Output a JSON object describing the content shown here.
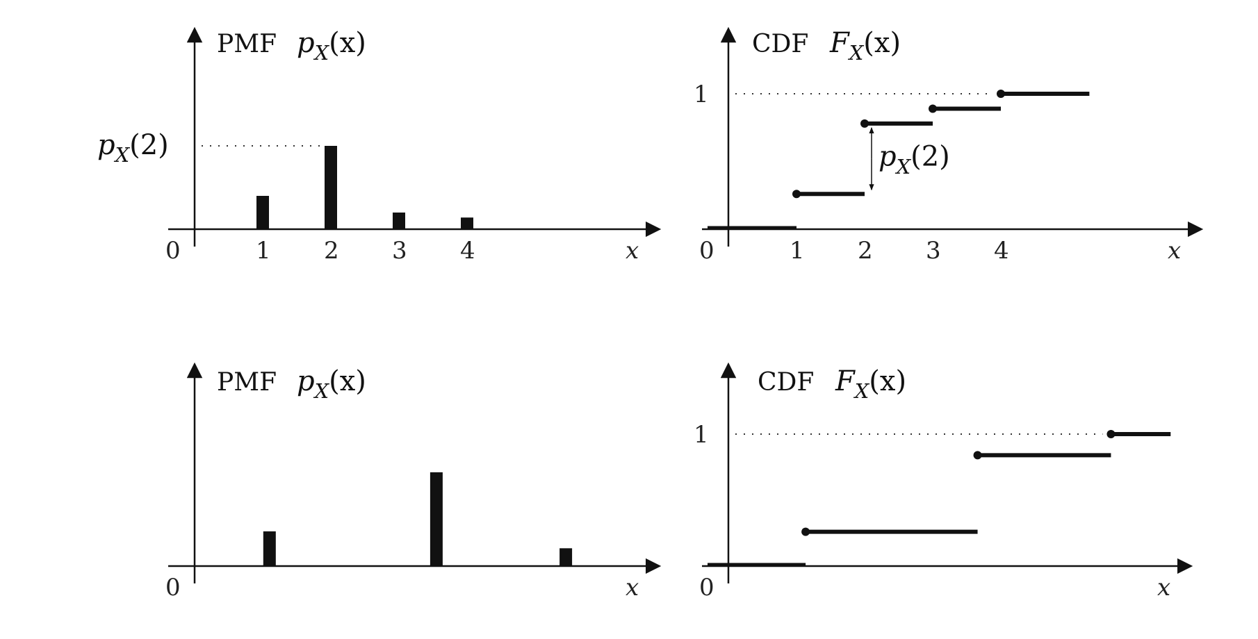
{
  "chart_data": [
    {
      "type": "bar",
      "title": "PMF",
      "title_math": "p",
      "title_sub": "X",
      "title_arg": "(x)",
      "xlabel": "x",
      "origin_label": "0",
      "x_ticks": [
        "1",
        "2",
        "3",
        "4"
      ],
      "x": [
        1,
        2,
        3,
        4
      ],
      "values": [
        0.4,
        1.0,
        0.2,
        0.14
      ],
      "y_ref_label": {
        "math": "p",
        "sub": "X",
        "arg": "(2)"
      }
    },
    {
      "type": "line",
      "title": "CDF",
      "title_math": "F",
      "title_sub": "X",
      "title_arg": "(x)",
      "xlabel": "x",
      "origin_label": "0",
      "y_tick": "1",
      "x_ticks": [
        "1",
        "2",
        "3",
        "4"
      ],
      "steps": [
        {
          "x_start": 0,
          "x_end": 1,
          "y": 0
        },
        {
          "x_start": 1,
          "x_end": 2,
          "y": 0.26
        },
        {
          "x_start": 2,
          "x_end": 3,
          "y": 0.78
        },
        {
          "x_start": 3,
          "x_end": 4,
          "y": 0.89
        },
        {
          "x_start": 4,
          "x_end": 5.3,
          "y": 1.0
        }
      ],
      "jump_label": {
        "math": "p",
        "sub": "X",
        "arg": "(2)"
      }
    },
    {
      "type": "bar",
      "title": "PMF",
      "title_math": "p",
      "title_sub": "X",
      "title_arg": "(x)",
      "xlabel": "x",
      "origin_label": "0",
      "x": [
        1.1,
        3.55,
        5.45
      ],
      "values": [
        0.37,
        1.0,
        0.19
      ]
    },
    {
      "type": "line",
      "title": "CDF",
      "title_math": "F",
      "title_sub": "X",
      "title_arg": "(x)",
      "xlabel": "x",
      "origin_label": "0",
      "y_tick": "1",
      "steps": [
        {
          "x_start": 0,
          "x_end": 1.1,
          "y": 0
        },
        {
          "x_start": 1.1,
          "x_end": 3.55,
          "y": 0.26
        },
        {
          "x_start": 3.55,
          "x_end": 5.45,
          "y": 0.84
        },
        {
          "x_start": 5.45,
          "x_end": 6.3,
          "y": 1.0
        }
      ]
    }
  ]
}
